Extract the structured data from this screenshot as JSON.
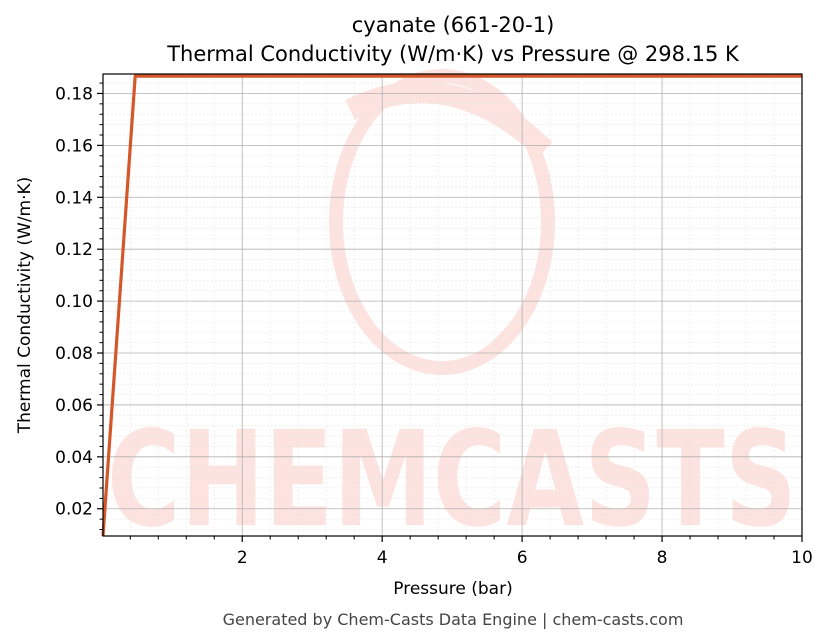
{
  "chart_data": {
    "type": "line",
    "title": "cyanate (661-20-1)",
    "subtitle": "Thermal Conductivity (W/m·K) vs Pressure @ 298.15 K",
    "xlabel": "Pressure (bar)",
    "ylabel": "Thermal Conductivity (W/m·K)",
    "xlim": [
      0.01,
      10
    ],
    "ylim": [
      0.0095,
      0.1875
    ],
    "xticks": [
      2,
      4,
      6,
      8,
      10
    ],
    "yticks": [
      0.02,
      0.04,
      0.06,
      0.08,
      0.1,
      0.12,
      0.14,
      0.16,
      0.18
    ],
    "ytick_labels": [
      "0.02",
      "0.04",
      "0.06",
      "0.08",
      "0.10",
      "0.12",
      "0.14",
      "0.16",
      "0.18"
    ],
    "grid": true,
    "series": [
      {
        "color": "#d4572a",
        "x": [
          0.01,
          0.47,
          10
        ],
        "y": [
          0.0095,
          0.1867,
          0.1867
        ]
      }
    ]
  },
  "watermark": {
    "text": "CHEMCASTS",
    "color": "#fde3df"
  },
  "footer": {
    "text": "Generated by Chem-Casts Data Engine | chem-casts.com"
  }
}
